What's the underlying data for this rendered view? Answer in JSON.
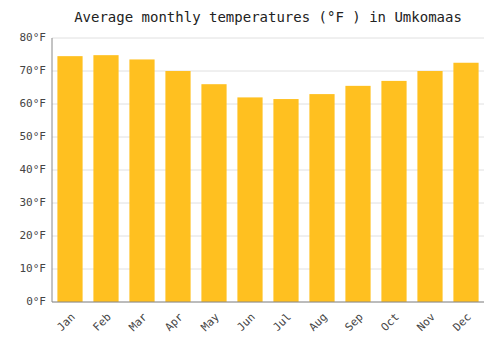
{
  "chart_data": {
    "type": "bar",
    "title": "Average monthly temperatures (°F ) in Umkomaas",
    "categories": [
      "Jan",
      "Feb",
      "Mar",
      "Apr",
      "May",
      "Jun",
      "Jul",
      "Aug",
      "Sep",
      "Oct",
      "Nov",
      "Dec"
    ],
    "values": [
      74.5,
      74.8,
      73.5,
      70.0,
      66.0,
      62.0,
      61.5,
      63.0,
      65.5,
      67.0,
      70.0,
      72.5
    ],
    "color": "#FFC020",
    "ylim": [
      0,
      80
    ],
    "yticks": [
      {
        "value": 0,
        "label": "0°F"
      },
      {
        "value": 10,
        "label": "10°F"
      },
      {
        "value": 20,
        "label": "20°F"
      },
      {
        "value": 30,
        "label": "30°F"
      },
      {
        "value": 40,
        "label": "40°F"
      },
      {
        "value": 50,
        "label": "50°F"
      },
      {
        "value": 60,
        "label": "60°F"
      },
      {
        "value": 70,
        "label": "70°F"
      },
      {
        "value": 80,
        "label": "80°F"
      }
    ],
    "grid": true
  }
}
